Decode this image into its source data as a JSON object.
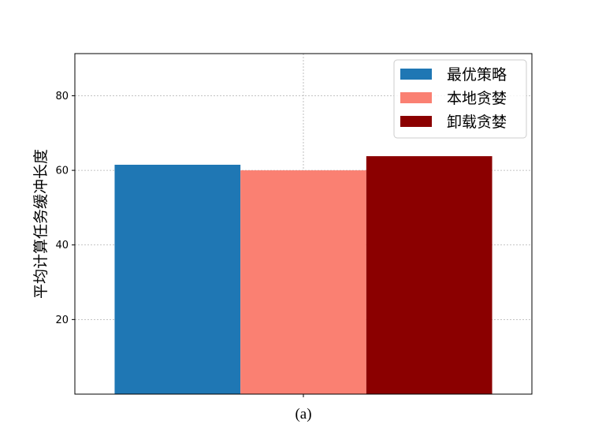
{
  "chart_data": {
    "type": "bar",
    "categories": [
      "(a)"
    ],
    "series": [
      {
        "name": "最优策略",
        "values": [
          61.5
        ],
        "color": "#1f77b4"
      },
      {
        "name": "本地贪婪",
        "values": [
          60.0
        ],
        "color": "#fa8072"
      },
      {
        "name": "卸载贪婪",
        "values": [
          63.8
        ],
        "color": "#8b0000"
      }
    ],
    "title": "",
    "xlabel": "",
    "ylabel": "平均计算任务缓冲长度",
    "ylim": [
      0,
      91.3
    ],
    "yticks": [
      20,
      40,
      60,
      80
    ],
    "grid": true,
    "legend_position": "top-right"
  }
}
